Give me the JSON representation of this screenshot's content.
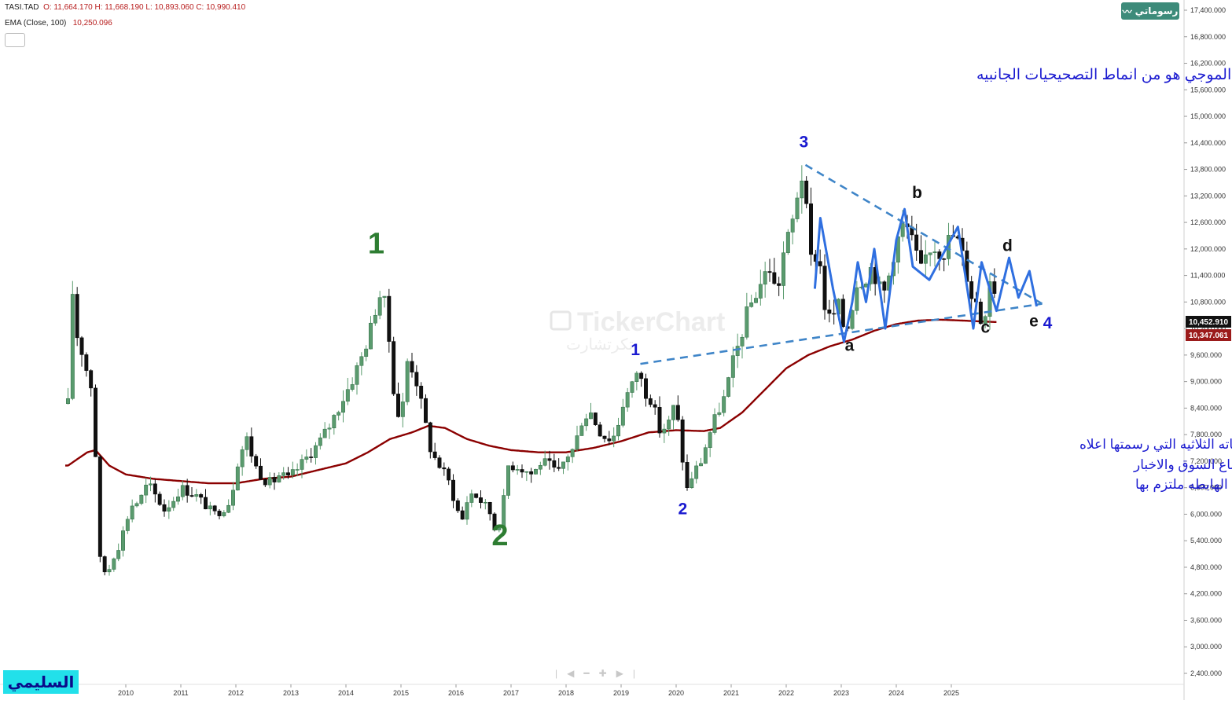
{
  "header": {
    "symbol": "TASI.TAD",
    "ohlc": "O: 11,664.170 H: 11,668.190 L: 10,893.060 C: 10,990.410",
    "ema_label": "EMA  (Close, 100)",
    "ema_value": "10,250.096"
  },
  "brand": {
    "label": "رسوماتي"
  },
  "watermark": {
    "text": "TickerChart",
    "sub": "تكرتشارت"
  },
  "signature": "السليمي",
  "colors": {
    "up": "#5a9b6e",
    "down": "#111111",
    "ema": "#8b0000",
    "wave": "#2f6fe0",
    "trend": "#3f85c8",
    "label_blue": "#1a1ad0",
    "label_green": "#2e7d32",
    "price_tag": "#111111",
    "ema_tag": "#9b1b1b"
  },
  "toolbar": {
    "icons": [
      "bar-icon",
      "chevron-left-icon",
      "minus-icon",
      "plus-icon",
      "chevron-right-icon",
      "bar-end-icon"
    ]
  },
  "chart_data": {
    "type": "candlestick",
    "x_ticks": [
      "2010",
      "2011",
      "2012",
      "2013",
      "2014",
      "2015",
      "2016",
      "2017",
      "2018",
      "2019",
      "2020",
      "2021",
      "2022",
      "2023",
      "2024",
      "2025"
    ],
    "y_ticks": [
      "17,400.000",
      "16,800.000",
      "16,200.000",
      "15,600.000",
      "15,000.000",
      "14,400.000",
      "13,800.000",
      "13,200.000",
      "12,600.000",
      "12,000.000",
      "11,400.000",
      "10,800.000",
      "10,200.000",
      "9,600.000",
      "9,000.000",
      "8,400.000",
      "7,800.000",
      "7,200.000",
      "6,600.000",
      "6,000.000",
      "5,400.000",
      "4,800.000",
      "4,200.000",
      "3,600.000",
      "3,000.000",
      "2,400.000"
    ],
    "y_range": [
      2400,
      17400
    ],
    "last_price": "10,452.910",
    "ema_price": "10,347.061",
    "close_anchors": [
      [
        2008.95,
        8500
      ],
      [
        2009.02,
        11200
      ],
      [
        2009.1,
        10100
      ],
      [
        2009.18,
        9800
      ],
      [
        2009.3,
        9200
      ],
      [
        2009.42,
        8700
      ],
      [
        2009.5,
        5100
      ],
      [
        2009.58,
        4800
      ],
      [
        2009.66,
        4600
      ],
      [
        2009.75,
        5000
      ],
      [
        2009.85,
        5200
      ],
      [
        2009.95,
        5600
      ],
      [
        2010.1,
        6200
      ],
      [
        2010.25,
        6300
      ],
      [
        2010.4,
        6700
      ],
      [
        2010.55,
        6400
      ],
      [
        2010.7,
        6100
      ],
      [
        2010.85,
        6300
      ],
      [
        2011.0,
        6600
      ],
      [
        2011.15,
        6500
      ],
      [
        2011.3,
        6400
      ],
      [
        2011.45,
        6200
      ],
      [
        2011.6,
        6000
      ],
      [
        2011.75,
        6100
      ],
      [
        2011.9,
        6300
      ],
      [
        2012.05,
        7300
      ],
      [
        2012.2,
        7700
      ],
      [
        2012.35,
        7100
      ],
      [
        2012.5,
        6800
      ],
      [
        2012.65,
        6700
      ],
      [
        2012.8,
        6900
      ],
      [
        2012.95,
        6800
      ],
      [
        2013.1,
        7000
      ],
      [
        2013.3,
        7300
      ],
      [
        2013.5,
        7600
      ],
      [
        2013.7,
        8000
      ],
      [
        2013.9,
        8500
      ],
      [
        2014.1,
        9000
      ],
      [
        2014.3,
        9600
      ],
      [
        2014.45,
        10200
      ],
      [
        2014.6,
        11000
      ],
      [
        2014.72,
        10700
      ],
      [
        2014.82,
        9500
      ],
      [
        2014.9,
        8400
      ],
      [
        2015.0,
        8100
      ],
      [
        2015.12,
        9500
      ],
      [
        2015.25,
        9200
      ],
      [
        2015.4,
        8300
      ],
      [
        2015.55,
        7400
      ],
      [
        2015.7,
        7100
      ],
      [
        2015.85,
        6800
      ],
      [
        2016.0,
        6200
      ],
      [
        2016.1,
        5800
      ],
      [
        2016.2,
        6300
      ],
      [
        2016.3,
        6500
      ],
      [
        2016.45,
        6300
      ],
      [
        2016.6,
        6100
      ],
      [
        2016.72,
        5600
      ],
      [
        2016.82,
        5900
      ],
      [
        2016.95,
        7100
      ],
      [
        2017.1,
        7100
      ],
      [
        2017.25,
        7000
      ],
      [
        2017.4,
        6900
      ],
      [
        2017.55,
        7200
      ],
      [
        2017.7,
        7100
      ],
      [
        2017.85,
        6900
      ],
      [
        2018.0,
        7300
      ],
      [
        2018.15,
        7500
      ],
      [
        2018.3,
        8200
      ],
      [
        2018.45,
        8300
      ],
      [
        2018.6,
        7900
      ],
      [
        2018.75,
        7700
      ],
      [
        2018.9,
        7800
      ],
      [
        2019.05,
        8600
      ],
      [
        2019.2,
        8900
      ],
      [
        2019.3,
        9300
      ],
      [
        2019.42,
        8800
      ],
      [
        2019.55,
        8600
      ],
      [
        2019.7,
        7900
      ],
      [
        2019.85,
        8000
      ],
      [
        2019.95,
        8400
      ],
      [
        2020.05,
        8000
      ],
      [
        2020.12,
        7200
      ],
      [
        2020.18,
        6500
      ],
      [
        2020.3,
        6900
      ],
      [
        2020.45,
        7200
      ],
      [
        2020.6,
        7800
      ],
      [
        2020.75,
        8300
      ],
      [
        2020.9,
        8700
      ],
      [
        2021.0,
        9300
      ],
      [
        2021.15,
        9900
      ],
      [
        2021.3,
        10600
      ],
      [
        2021.45,
        11000
      ],
      [
        2021.6,
        11400
      ],
      [
        2021.72,
        11600
      ],
      [
        2021.82,
        10900
      ],
      [
        2021.95,
        11900
      ],
      [
        2022.1,
        12500
      ],
      [
        2022.22,
        13400
      ],
      [
        2022.32,
        13800
      ],
      [
        2022.42,
        11700
      ],
      [
        2022.52,
        11900
      ],
      [
        2022.62,
        11600
      ],
      [
        2022.72,
        10500
      ],
      [
        2022.82,
        10400
      ],
      [
        2022.95,
        10700
      ],
      [
        2023.05,
        10200
      ],
      [
        2023.15,
        10300
      ],
      [
        2023.25,
        11200
      ],
      [
        2023.35,
        11300
      ],
      [
        2023.45,
        11400
      ],
      [
        2023.55,
        11600
      ],
      [
        2023.65,
        11300
      ],
      [
        2023.75,
        10900
      ],
      [
        2023.85,
        11300
      ],
      [
        2023.95,
        11900
      ],
      [
        2024.05,
        12300
      ],
      [
        2024.15,
        12600
      ],
      [
        2024.25,
        12300
      ],
      [
        2024.35,
        11900
      ],
      [
        2024.45,
        11500
      ],
      [
        2024.55,
        11900
      ],
      [
        2024.65,
        12100
      ],
      [
        2024.75,
        12000
      ],
      [
        2024.85,
        11900
      ],
      [
        2024.95,
        12200
      ],
      [
        2025.05,
        12300
      ],
      [
        2025.15,
        12100
      ],
      [
        2025.25,
        11600
      ],
      [
        2025.35,
        11000
      ],
      [
        2025.45,
        10800
      ],
      [
        2025.55,
        10300
      ],
      [
        2025.65,
        10800
      ],
      [
        2025.72,
        11600
      ],
      [
        2025.8,
        10990
      ]
    ],
    "ema_anchors": [
      [
        2008.95,
        7100
      ],
      [
        2009.3,
        7400
      ],
      [
        2009.45,
        7450
      ],
      [
        2009.7,
        7100
      ],
      [
        2010.0,
        6900
      ],
      [
        2010.5,
        6800
      ],
      [
        2011.0,
        6750
      ],
      [
        2011.5,
        6700
      ],
      [
        2012.0,
        6700
      ],
      [
        2012.5,
        6800
      ],
      [
        2013.0,
        6850
      ],
      [
        2013.5,
        7000
      ],
      [
        2014.0,
        7150
      ],
      [
        2014.4,
        7400
      ],
      [
        2014.8,
        7700
      ],
      [
        2015.2,
        7850
      ],
      [
        2015.5,
        8000
      ],
      [
        2015.8,
        7950
      ],
      [
        2016.2,
        7700
      ],
      [
        2016.6,
        7550
      ],
      [
        2017.0,
        7450
      ],
      [
        2017.5,
        7400
      ],
      [
        2018.0,
        7400
      ],
      [
        2018.5,
        7500
      ],
      [
        2019.0,
        7650
      ],
      [
        2019.5,
        7850
      ],
      [
        2020.0,
        7900
      ],
      [
        2020.5,
        7880
      ],
      [
        2020.8,
        7950
      ],
      [
        2021.2,
        8300
      ],
      [
        2021.6,
        8800
      ],
      [
        2022.0,
        9300
      ],
      [
        2022.4,
        9600
      ],
      [
        2022.8,
        9800
      ],
      [
        2023.2,
        9950
      ],
      [
        2023.6,
        10150
      ],
      [
        2024.0,
        10300
      ],
      [
        2024.4,
        10380
      ],
      [
        2024.8,
        10400
      ],
      [
        2025.2,
        10380
      ],
      [
        2025.8,
        10347
      ]
    ],
    "trendlines": [
      {
        "name": "upper",
        "from": [
          2022.35,
          13900
        ],
        "to": [
          2026.65,
          10760
        ]
      },
      {
        "name": "lower",
        "from": [
          2019.35,
          9400
        ],
        "to": [
          2026.65,
          10760
        ]
      }
    ],
    "wave_path": [
      [
        2022.52,
        11100
      ],
      [
        2022.62,
        12700
      ],
      [
        2022.85,
        11100
      ],
      [
        2023.05,
        9900
      ],
      [
        2023.2,
        10800
      ],
      [
        2023.3,
        11700
      ],
      [
        2023.45,
        10800
      ],
      [
        2023.6,
        12000
      ],
      [
        2023.8,
        10200
      ],
      [
        2024.0,
        12200
      ],
      [
        2024.15,
        12900
      ],
      [
        2024.3,
        11600
      ],
      [
        2024.6,
        11300
      ],
      [
        2024.9,
        12000
      ],
      [
        2025.12,
        12500
      ],
      [
        2025.4,
        10200
      ],
      [
        2025.55,
        11700
      ],
      [
        2025.82,
        10600
      ],
      [
        2026.05,
        11800
      ],
      [
        2026.22,
        10900
      ],
      [
        2026.42,
        11500
      ],
      [
        2026.55,
        10700
      ]
    ],
    "wave_labels": [
      {
        "text": "1",
        "x": 2014.55,
        "y": 11900,
        "color": "green",
        "size": "large"
      },
      {
        "text": "2",
        "x": 2016.8,
        "y": 5300,
        "color": "green",
        "size": "large"
      },
      {
        "text": "1",
        "x": 2019.26,
        "y": 9600,
        "color": "blue",
        "size": "medium"
      },
      {
        "text": "2",
        "x": 2020.12,
        "y": 6000,
        "color": "blue",
        "size": "medium"
      },
      {
        "text": "3",
        "x": 2022.32,
        "y": 14300,
        "color": "blue",
        "size": "medium"
      },
      {
        "text": "b",
        "x": 2024.38,
        "y": 13150,
        "color": "black",
        "size": "medium"
      },
      {
        "text": "d",
        "x": 2026.02,
        "y": 11950,
        "color": "black",
        "size": "medium"
      },
      {
        "text": "a",
        "x": 2023.15,
        "y": 9700,
        "color": "black",
        "size": "medium"
      },
      {
        "text": "c",
        "x": 2025.62,
        "y": 10100,
        "color": "black",
        "size": "medium"
      },
      {
        "text": "e",
        "x": 2026.5,
        "y": 10250,
        "color": "black",
        "size": "medium"
      },
      {
        "text": "4",
        "x": 2026.75,
        "y": 10200,
        "color": "blue",
        "size": "medium"
      }
    ],
    "annotations": [
      "المثلث الموجي هو من انماط التصحيحيات الجانبيه",
      "بنفس تعرجاته الثلاثيه التي رسمتها اعلاه",
      "طول هذه التعرجات وقصرها في متناول صناع السوق والاخبار",
      "لكن النمط الثلاثي ذو القيعان الصاعده والقمم الهابطه ملتزم بها"
    ]
  }
}
